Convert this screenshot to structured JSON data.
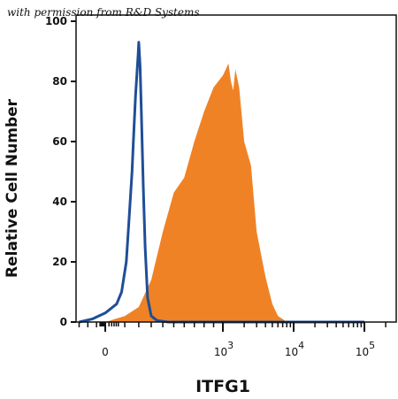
{
  "credit": "with permission from R&D Systems",
  "chart_data": {
    "type": "area",
    "title": "",
    "xlabel": "ITFG1",
    "ylabel": "Relative Cell Number",
    "x_scale": "biexponential",
    "ylim": [
      0,
      100
    ],
    "yticks": [
      "0",
      "20",
      "40",
      "60",
      "80",
      "100"
    ],
    "xticks": [
      {
        "base": "0",
        "exp": ""
      },
      {
        "base": "10",
        "exp": "3"
      },
      {
        "base": "10",
        "exp": "4"
      },
      {
        "base": "10",
        "exp": "5"
      }
    ],
    "grid": false,
    "legend": "none",
    "series": [
      {
        "style": "outline",
        "color": "#1f4e96",
        "x": [
          -300,
          -150,
          0,
          50,
          80,
          110,
          130,
          150,
          160,
          175,
          185,
          195,
          200,
          210,
          220,
          235,
          250,
          270,
          300,
          350,
          450,
          1000,
          10000,
          100000
        ],
        "y": [
          0,
          1,
          3,
          6,
          10,
          20,
          35,
          50,
          60,
          75,
          82,
          89,
          93,
          85,
          70,
          45,
          25,
          8,
          2,
          0.5,
          0,
          0,
          0,
          0
        ]
      },
      {
        "style": "filled",
        "color": "#f08226",
        "x": [
          -300,
          0,
          100,
          200,
          300,
          400,
          500,
          600,
          700,
          800,
          900,
          1000,
          1100,
          1200,
          1300,
          1400,
          1500,
          1700,
          2000,
          2500,
          3000,
          3500,
          4000,
          5000,
          6000,
          7000,
          8000,
          10000,
          100000
        ],
        "y": [
          0,
          0,
          2,
          5,
          14,
          30,
          43,
          48,
          60,
          70,
          78,
          82,
          84,
          86,
          80,
          77,
          84,
          78,
          60,
          52,
          30,
          22,
          15,
          6,
          2,
          1,
          0,
          0,
          0
        ]
      }
    ]
  }
}
